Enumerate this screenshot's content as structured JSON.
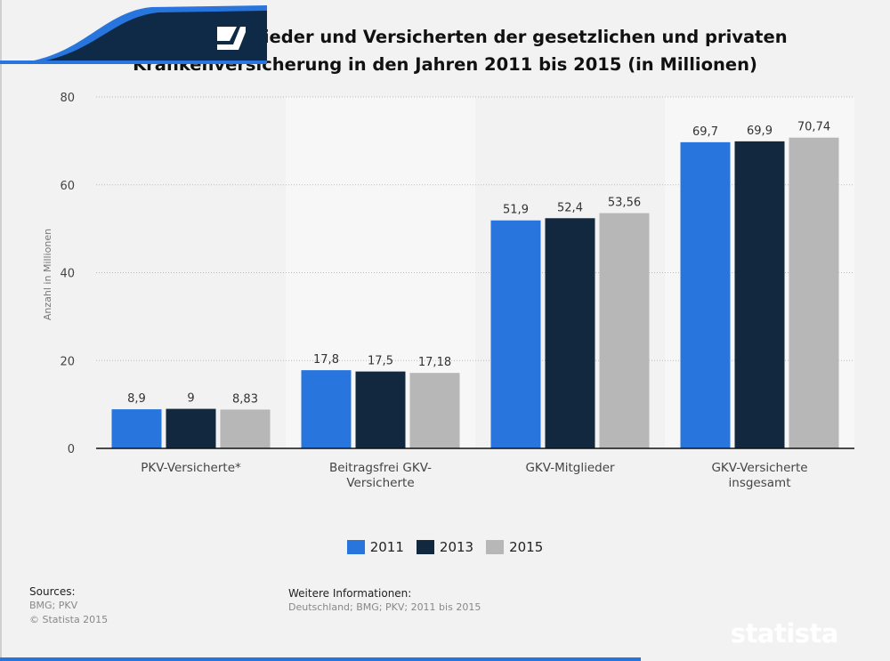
{
  "chart_data": {
    "type": "bar",
    "title": "Anzahl der Mitglieder und Versicherten der gesetzlichen und privaten Krankenversicherung in den Jahren 2011 bis 2015 (in Millionen)",
    "xlabel": "",
    "ylabel": "Anzahl in Millionen",
    "ylim": [
      0,
      80
    ],
    "yticks": [
      0,
      20,
      40,
      60,
      80
    ],
    "grid": true,
    "legend_position": "bottom",
    "categories": [
      [
        "PKV-Versicherte*"
      ],
      [
        "Beitragsfrei GKV-",
        "Versicherte"
      ],
      [
        "GKV-Mitglieder"
      ],
      [
        "GKV-Versicherte",
        "insgesamt"
      ]
    ],
    "series": [
      {
        "name": "2011",
        "color": "#2876dd",
        "values": [
          8.9,
          17.8,
          51.9,
          69.7
        ],
        "labels": [
          "8,9",
          "17,8",
          "51,9",
          "69,7"
        ]
      },
      {
        "name": "2013",
        "color": "#12283f",
        "values": [
          9,
          17.5,
          52.4,
          69.9
        ],
        "labels": [
          "9",
          "17,5",
          "52,4",
          "69,9"
        ]
      },
      {
        "name": "2015",
        "color": "#b7b7b7",
        "values": [
          8.83,
          17.18,
          53.56,
          70.74
        ],
        "labels": [
          "8,83",
          "17,18",
          "53,56",
          "70,74"
        ]
      }
    ]
  },
  "footer": {
    "sources_heading": "Sources:",
    "sources": "BMG; PKV",
    "copyright": "© Statista 2015",
    "info_heading": "Weitere Informationen:",
    "info": "Deutschland; BMG; PKV; 2011 bis 2015"
  },
  "logo": {
    "text": "statista",
    "colors": {
      "dark": "#0e2a47",
      "blue": "#2876dd"
    }
  }
}
